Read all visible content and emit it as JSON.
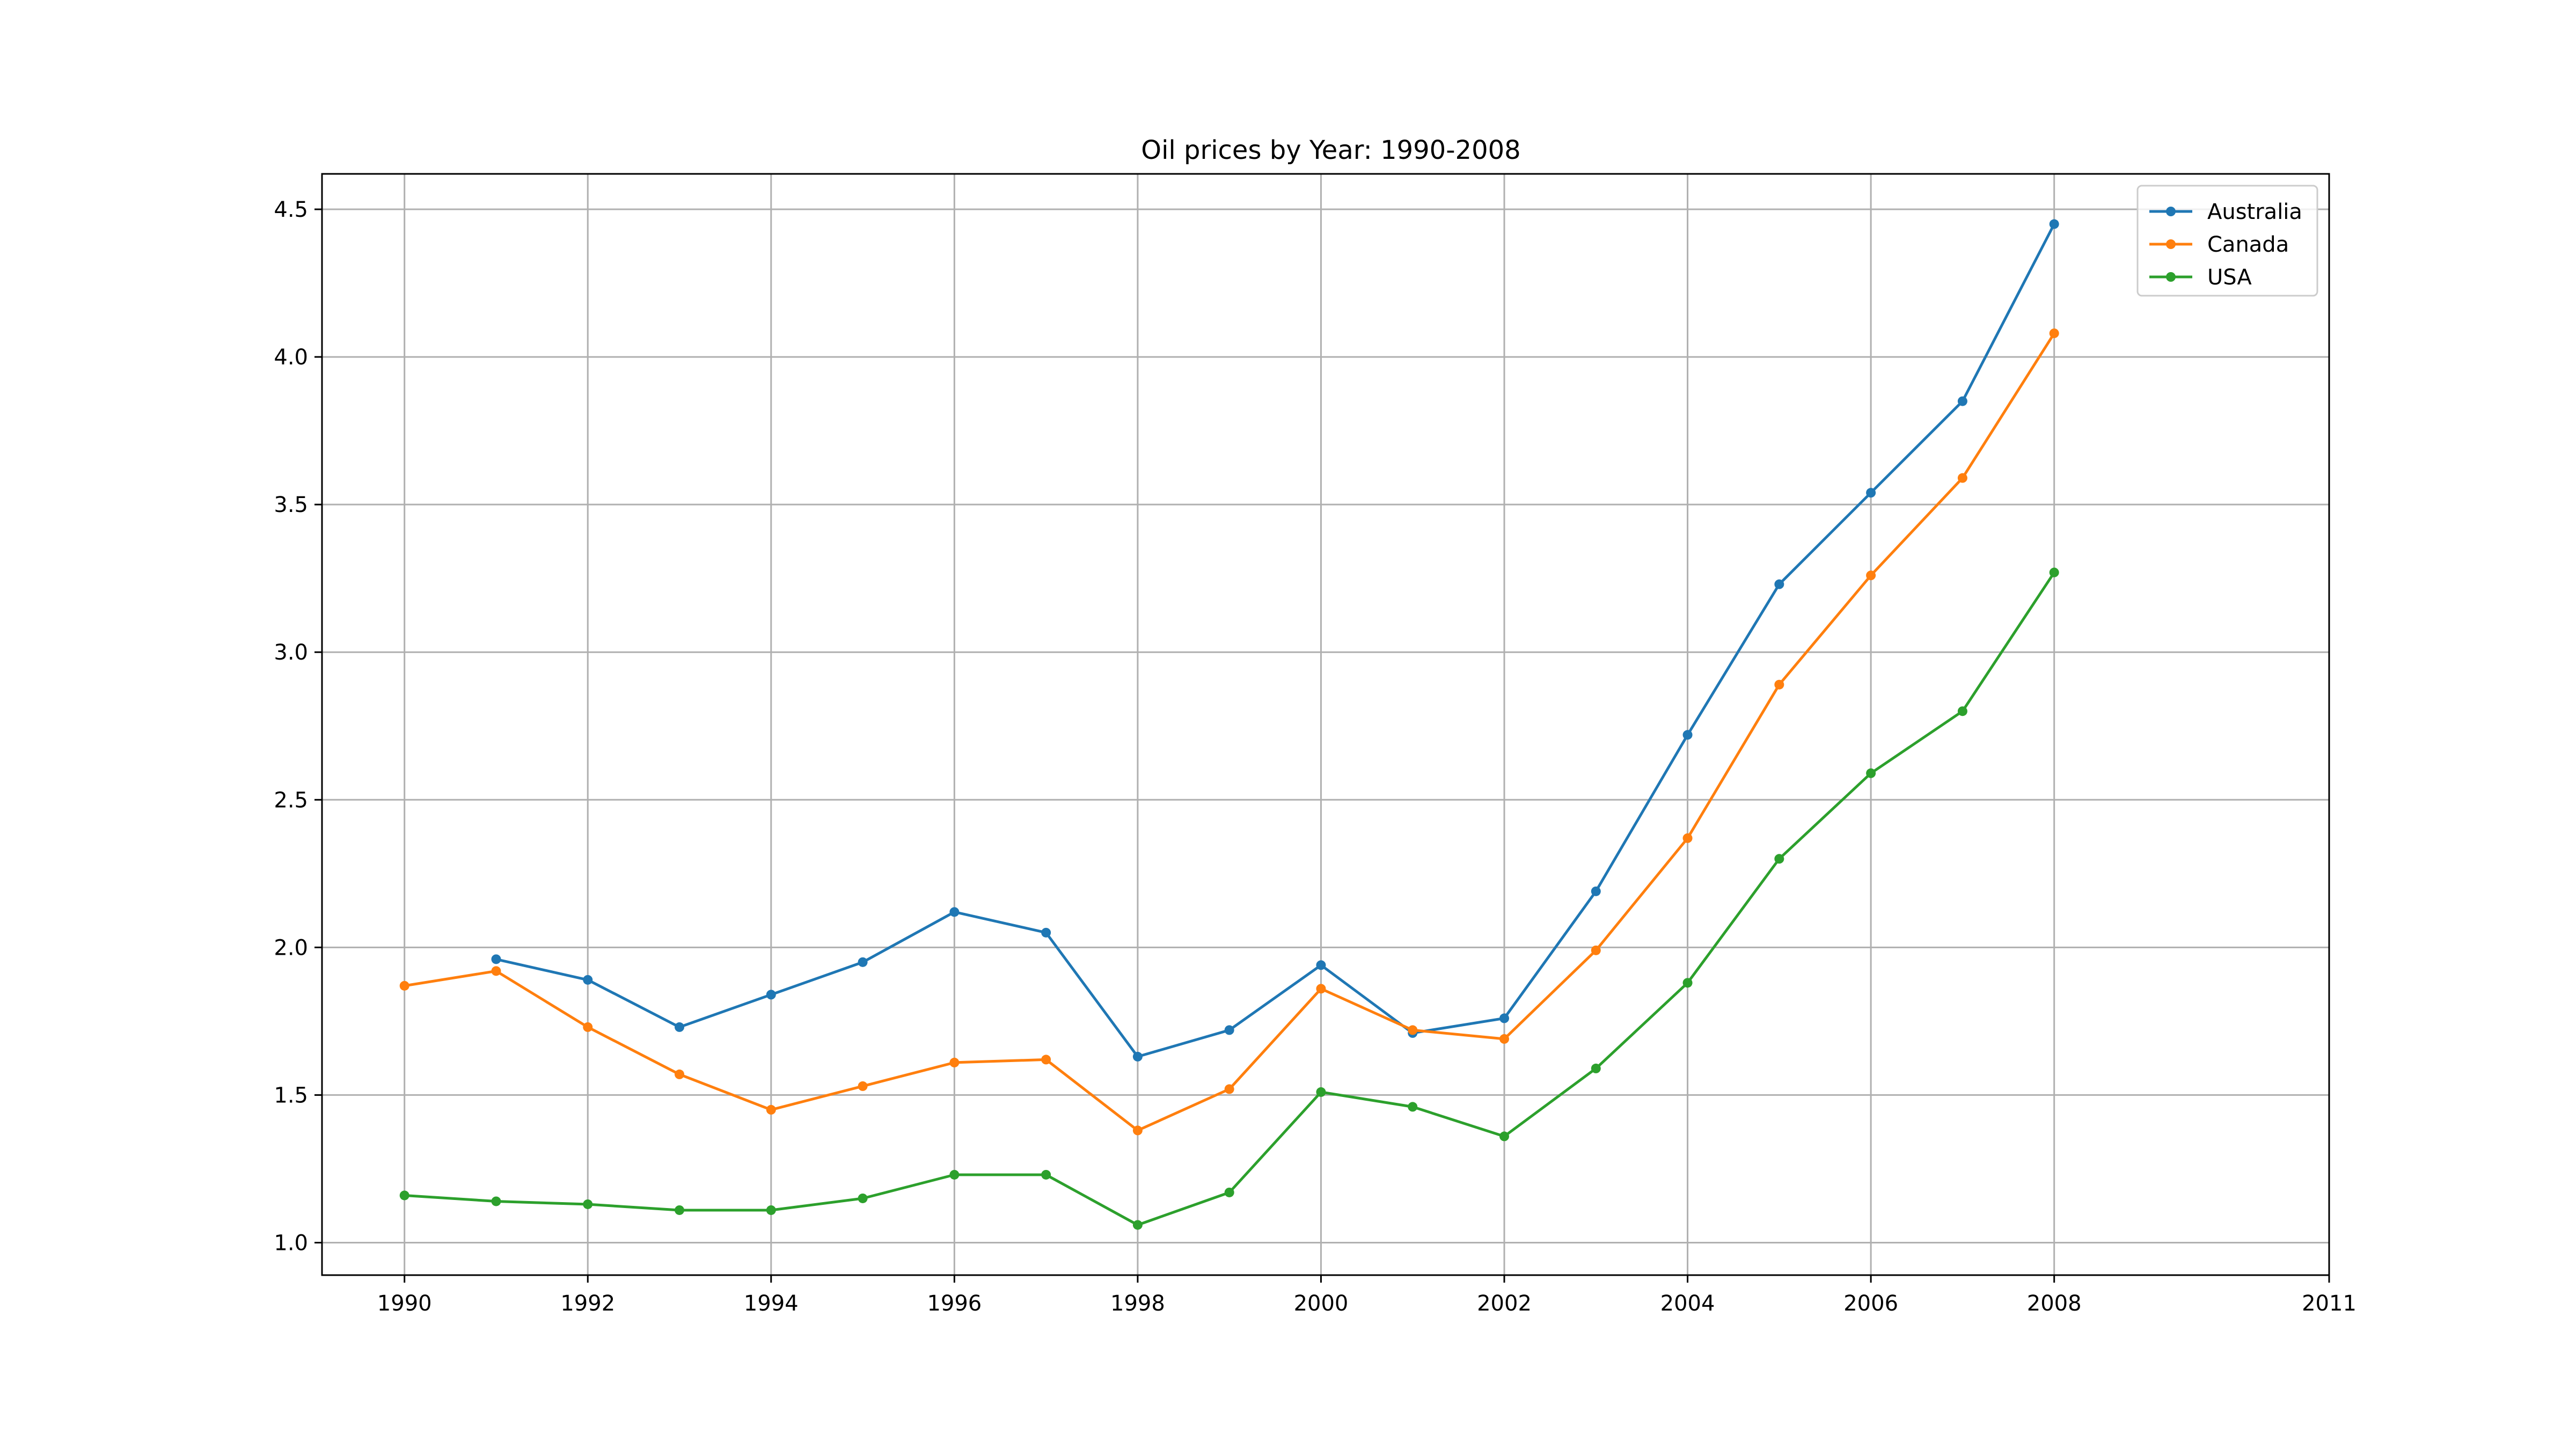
{
  "chart_data": {
    "type": "line",
    "title": "Oil prices by Year: 1990-2008",
    "xlabel": "",
    "ylabel": "",
    "xlim": [
      1989.1,
      2011
    ],
    "ylim": [
      0.89,
      4.62
    ],
    "x_ticks": [
      1990,
      1992,
      1994,
      1996,
      1998,
      2000,
      2002,
      2004,
      2006,
      2008,
      2011
    ],
    "y_ticks": [
      1.0,
      1.5,
      2.0,
      2.5,
      3.0,
      3.5,
      4.0,
      4.5
    ],
    "grid": true,
    "legend_position": "top-right",
    "series": [
      {
        "name": "Australia",
        "color": "#1f77b4",
        "x": [
          1991,
          1992,
          1993,
          1994,
          1995,
          1996,
          1997,
          1998,
          1999,
          2000,
          2001,
          2002,
          2003,
          2004,
          2005,
          2006,
          2007,
          2008
        ],
        "values": [
          1.96,
          1.89,
          1.73,
          1.84,
          1.95,
          2.12,
          2.05,
          1.63,
          1.72,
          1.94,
          1.71,
          1.76,
          2.19,
          2.72,
          3.23,
          3.54,
          3.85,
          4.45
        ]
      },
      {
        "name": "Canada",
        "color": "#ff7f0e",
        "x": [
          1990,
          1991,
          1992,
          1993,
          1994,
          1995,
          1996,
          1997,
          1998,
          1999,
          2000,
          2001,
          2002,
          2003,
          2004,
          2005,
          2006,
          2007,
          2008
        ],
        "values": [
          1.87,
          1.92,
          1.73,
          1.57,
          1.45,
          1.53,
          1.61,
          1.62,
          1.38,
          1.52,
          1.86,
          1.72,
          1.69,
          1.99,
          2.37,
          2.89,
          3.26,
          3.59,
          4.08
        ]
      },
      {
        "name": "USA",
        "color": "#2ca02c",
        "x": [
          1990,
          1991,
          1992,
          1993,
          1994,
          1995,
          1996,
          1997,
          1998,
          1999,
          2000,
          2001,
          2002,
          2003,
          2004,
          2005,
          2006,
          2007,
          2008
        ],
        "values": [
          1.16,
          1.14,
          1.13,
          1.11,
          1.11,
          1.15,
          1.23,
          1.23,
          1.06,
          1.17,
          1.51,
          1.46,
          1.36,
          1.59,
          1.88,
          2.3,
          2.59,
          2.8,
          3.27
        ]
      }
    ]
  }
}
